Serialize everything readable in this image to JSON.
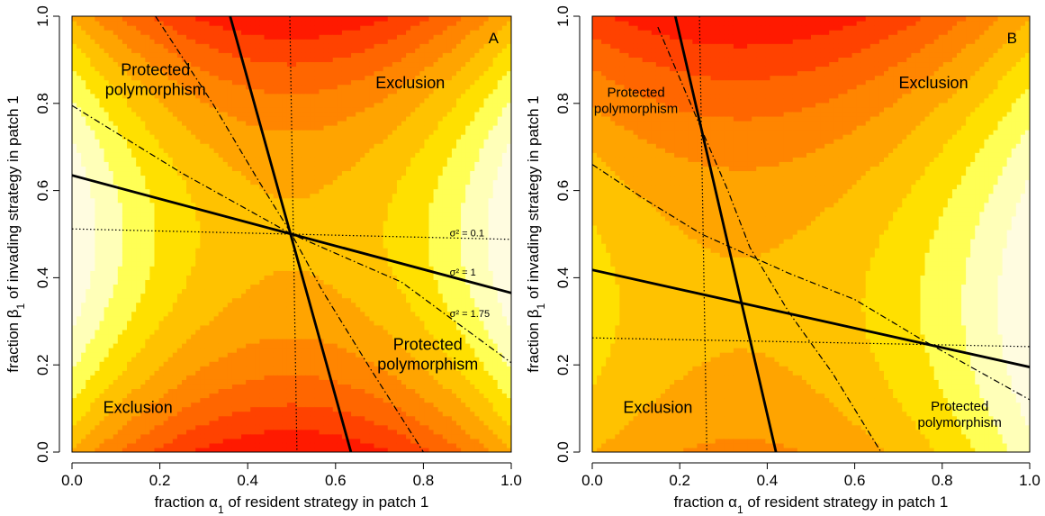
{
  "colors": {
    "palette": [
      "#fffce0",
      "#ffffb8",
      "#ffff55",
      "#ffe000",
      "#ffc200",
      "#ffa400",
      "#ff8500",
      "#ff6600",
      "#ff4200",
      "#ff1a00"
    ],
    "boundary": "#000000",
    "background": "#ffffff"
  },
  "chart_data": [
    {
      "type": "heatmap",
      "panel_label": "A",
      "xlabel_prefix": "fraction ",
      "xlabel_symbol": "α",
      "xlabel_sub": "1",
      "xlabel_suffix": " of resident strategy in patch 1",
      "ylabel_prefix": "fraction ",
      "ylabel_symbol": "β",
      "ylabel_sub": "1",
      "ylabel_suffix": " of invading strategy in patch 1",
      "xlim": [
        0,
        1
      ],
      "ylim": [
        0,
        1
      ],
      "xticks": [
        "0.0",
        "0.2",
        "0.4",
        "0.6",
        "0.8",
        "1.0"
      ],
      "yticks": [
        "0.0",
        "0.2",
        "0.4",
        "0.6",
        "0.8",
        "1.0"
      ],
      "surface": {
        "x_center": 0.5,
        "y_center": 0.5,
        "levels": 10
      },
      "solid_lines": [
        {
          "points": [
            [
              0.0,
              0.635
            ],
            [
              1.0,
              0.365
            ]
          ]
        },
        {
          "points": [
            [
              0.36,
              1.0
            ],
            [
              0.635,
              0.0
            ]
          ]
        }
      ],
      "dotted_lines": [
        {
          "points": [
            [
              0.0,
              0.512
            ],
            [
              1.0,
              0.488
            ]
          ]
        },
        {
          "points": [
            [
              0.496,
              1.0
            ],
            [
              0.512,
              0.0
            ]
          ]
        }
      ],
      "dashdot_lines": [
        {
          "points": [
            [
              0.0,
              0.795
            ],
            [
              0.25,
              0.64
            ],
            [
              0.5,
              0.5
            ],
            [
              0.75,
              0.39
            ],
            [
              1.0,
              0.205
            ]
          ]
        },
        {
          "points": [
            [
              0.19,
              1.0
            ],
            [
              0.32,
              0.8
            ],
            [
              0.42,
              0.63
            ],
            [
              0.5,
              0.5
            ],
            [
              0.57,
              0.37
            ],
            [
              0.68,
              0.19
            ],
            [
              0.8,
              0.0
            ]
          ]
        }
      ],
      "sigma_labels": [
        {
          "text": "σ² = 0.1",
          "x": 0.86,
          "y": 0.495
        },
        {
          "text": "σ² = 1",
          "x": 0.86,
          "y": 0.405
        },
        {
          "text": "σ² = 1.75",
          "x": 0.86,
          "y": 0.31
        }
      ],
      "region_labels": [
        {
          "lines": [
            "Protected",
            "polymorphism"
          ],
          "x": 0.19,
          "y": 0.865,
          "size": "big"
        },
        {
          "lines": [
            "Exclusion"
          ],
          "x": 0.77,
          "y": 0.835,
          "size": "big"
        },
        {
          "lines": [
            "Protected",
            "polymorphism"
          ],
          "x": 0.81,
          "y": 0.235,
          "size": "big"
        },
        {
          "lines": [
            "Exclusion"
          ],
          "x": 0.15,
          "y": 0.09,
          "size": "big"
        }
      ]
    },
    {
      "type": "heatmap",
      "panel_label": "B",
      "xlabel_prefix": "fraction ",
      "xlabel_symbol": "α",
      "xlabel_sub": "1",
      "xlabel_suffix": " of resident strategy in patch 1",
      "ylabel_prefix": "fraction ",
      "ylabel_symbol": "β",
      "ylabel_sub": "1",
      "ylabel_suffix": " of invading strategy in patch 1",
      "xlim": [
        0,
        1
      ],
      "ylim": [
        0,
        1
      ],
      "xticks": [
        "0.0",
        "0.2",
        "0.4",
        "0.6",
        "0.8",
        "1.0"
      ],
      "yticks": [
        "0.0",
        "0.2",
        "0.4",
        "0.6",
        "0.8",
        "1.0"
      ],
      "surface": {
        "x_center": 0.34,
        "y_center": 0.34,
        "levels": 10
      },
      "solid_lines": [
        {
          "points": [
            [
              0.0,
              0.418
            ],
            [
              1.0,
              0.195
            ]
          ]
        },
        {
          "points": [
            [
              0.19,
              1.0
            ],
            [
              0.42,
              0.0
            ]
          ]
        }
      ],
      "dotted_lines": [
        {
          "points": [
            [
              0.0,
              0.262
            ],
            [
              1.0,
              0.242
            ]
          ]
        },
        {
          "points": [
            [
              0.245,
              1.0
            ],
            [
              0.262,
              0.0
            ]
          ]
        }
      ],
      "dashdot_lines": [
        {
          "points": [
            [
              0.0,
              0.66
            ],
            [
              0.12,
              0.58
            ],
            [
              0.25,
              0.5
            ],
            [
              0.45,
              0.41
            ],
            [
              0.6,
              0.35
            ],
            [
              0.75,
              0.26
            ],
            [
              1.0,
              0.12
            ]
          ]
        },
        {
          "points": [
            [
              0.15,
              0.975
            ],
            [
              0.25,
              0.74
            ],
            [
              0.31,
              0.6
            ],
            [
              0.36,
              0.47
            ],
            [
              0.45,
              0.32
            ],
            [
              0.55,
              0.18
            ],
            [
              0.66,
              0.0
            ]
          ]
        }
      ],
      "sigma_labels": [],
      "region_labels": [
        {
          "lines": [
            "Protected",
            "polymorphism"
          ],
          "x": 0.1,
          "y": 0.815,
          "size": "small"
        },
        {
          "lines": [
            "Exclusion"
          ],
          "x": 0.78,
          "y": 0.835,
          "size": "big"
        },
        {
          "lines": [
            "Protected",
            "polymorphism"
          ],
          "x": 0.84,
          "y": 0.095,
          "size": "small"
        },
        {
          "lines": [
            "Exclusion"
          ],
          "x": 0.15,
          "y": 0.09,
          "size": "big"
        }
      ]
    }
  ]
}
